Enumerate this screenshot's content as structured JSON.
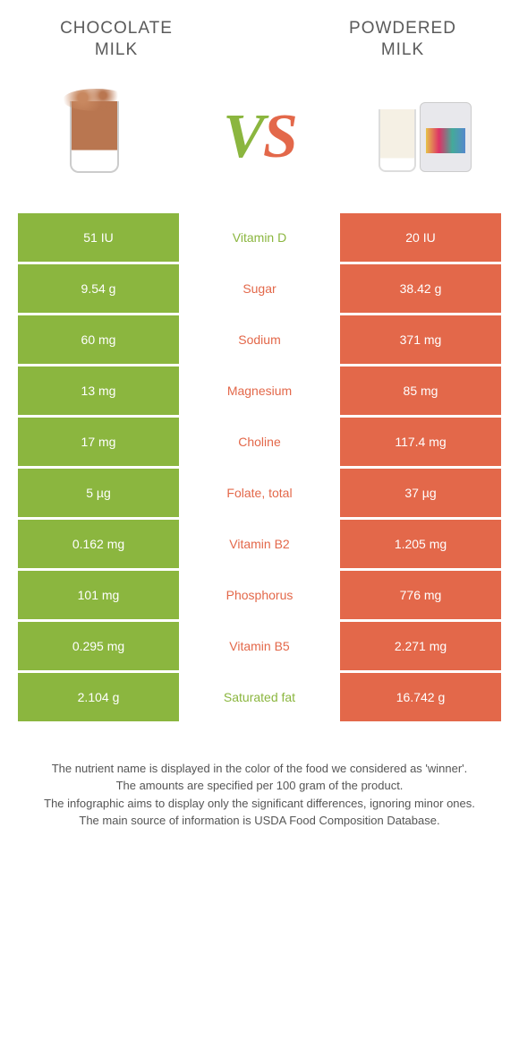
{
  "left_color": "#8bb63f",
  "right_color": "#e3684a",
  "header": {
    "left_title_l1": "CHOCOLATE",
    "left_title_l2": "MILK",
    "right_title_l1": "POWDERED",
    "right_title_l2": "MILK",
    "vs_v": "V",
    "vs_s": "S"
  },
  "rows": [
    {
      "label": "Vitamin D",
      "left": "51 IU",
      "right": "20 IU",
      "winner": "left"
    },
    {
      "label": "Sugar",
      "left": "9.54 g",
      "right": "38.42 g",
      "winner": "right"
    },
    {
      "label": "Sodium",
      "left": "60 mg",
      "right": "371 mg",
      "winner": "right"
    },
    {
      "label": "Magnesium",
      "left": "13 mg",
      "right": "85 mg",
      "winner": "right"
    },
    {
      "label": "Choline",
      "left": "17 mg",
      "right": "117.4 mg",
      "winner": "right"
    },
    {
      "label": "Folate, total",
      "left": "5 µg",
      "right": "37 µg",
      "winner": "right"
    },
    {
      "label": "Vitamin B2",
      "left": "0.162 mg",
      "right": "1.205 mg",
      "winner": "right"
    },
    {
      "label": "Phosphorus",
      "left": "101 mg",
      "right": "776 mg",
      "winner": "right"
    },
    {
      "label": "Vitamin B5",
      "left": "0.295 mg",
      "right": "2.271 mg",
      "winner": "right"
    },
    {
      "label": "Saturated fat",
      "left": "2.104 g",
      "right": "16.742 g",
      "winner": "left"
    }
  ],
  "notes": {
    "l1": "The nutrient name is displayed in the color of the food we considered as 'winner'.",
    "l2": "The amounts are specified per 100 gram of the product.",
    "l3": "The infographic aims to display only the significant differences, ignoring minor ones.",
    "l4": "The main source of information is USDA Food Composition Database."
  }
}
